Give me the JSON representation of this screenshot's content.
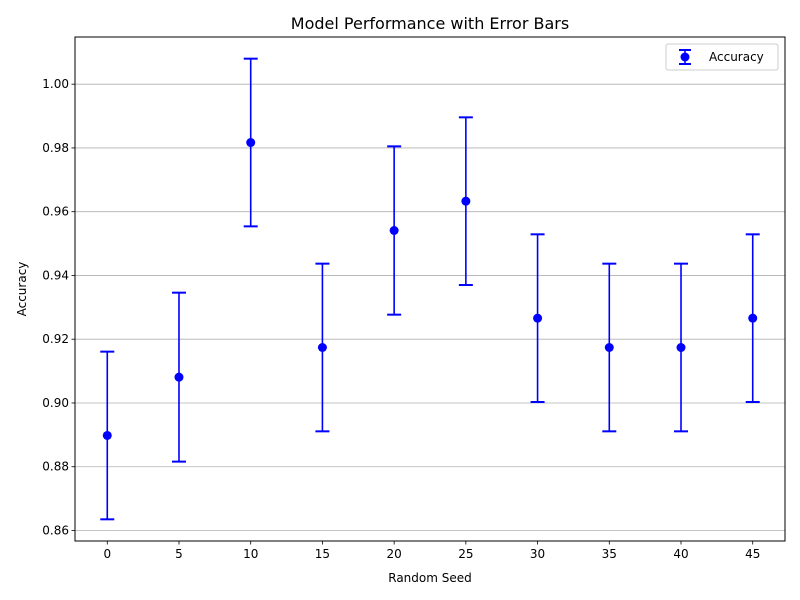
{
  "chart_data": {
    "type": "scatter",
    "title": "Model Performance with Error Bars",
    "xlabel": "Random Seed",
    "ylabel": "Accuracy",
    "x": [
      0,
      5,
      10,
      15,
      20,
      25,
      30,
      35,
      40,
      45
    ],
    "series": [
      {
        "name": "Accuracy",
        "values": [
          0.8898,
          0.9081,
          0.9817,
          0.9174,
          0.9541,
          0.9633,
          0.9266,
          0.9174,
          0.9174,
          0.9266
        ],
        "error": [
          0.0263,
          0.0265,
          0.0263,
          0.0263,
          0.0264,
          0.0263,
          0.0263,
          0.0263,
          0.0263,
          0.0263
        ],
        "color": "#0000ff"
      }
    ],
    "xticks": [
      "0",
      "5",
      "10",
      "15",
      "20",
      "25",
      "30",
      "35",
      "40",
      "45"
    ],
    "yticks": [
      "0.86",
      "0.88",
      "0.90",
      "0.92",
      "0.94",
      "0.96",
      "0.98",
      "1.00"
    ],
    "xlim": [
      -2.25,
      47.25
    ],
    "ylim": [
      0.8567,
      1.0148
    ],
    "grid": "y",
    "legend": "top-right"
  }
}
